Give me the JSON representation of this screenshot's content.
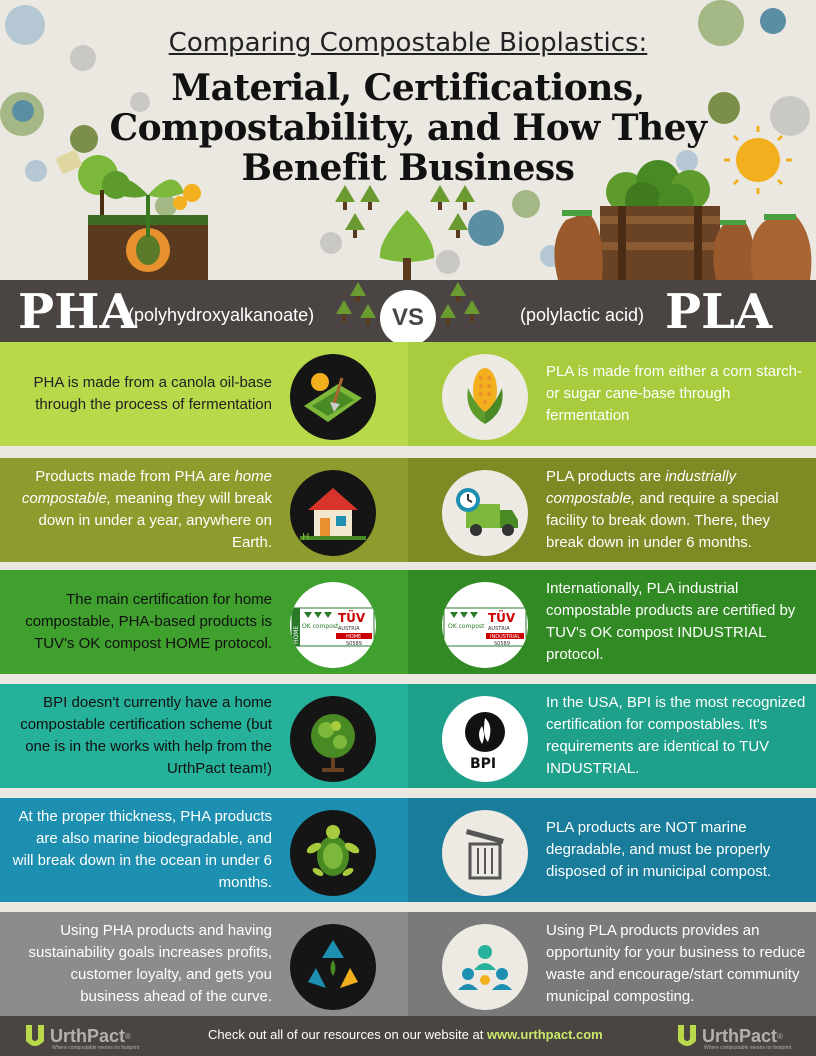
{
  "header": {
    "subtitle": "Comparing Compostable Bioplastics:",
    "title_lines": [
      "Material, Certifications,",
      "Compostability, and How They",
      "Benefit Business"
    ]
  },
  "vs_bar": {
    "left_abbr": "PHA",
    "left_full": "(polyhydroxyalkanoate)",
    "vs_label": "VS",
    "right_full": "(polylactic acid)",
    "right_abbr": "PLA"
  },
  "colors": {
    "row1_left": "#b8d94a",
    "row1_right": "#a8cc3e",
    "row2_left": "#8f9b2d",
    "row2_right": "#7f8a24",
    "row3_left": "#3fa02e",
    "row3_right": "#328a24",
    "row4_left": "#26b29a",
    "row4_right": "#1ea08a",
    "row5_left": "#1d8fb0",
    "row5_right": "#187c9a",
    "row6_left": "#8c8c8c",
    "row6_right": "#7a7a7a",
    "bar": "#4a4542",
    "footer_link": "#c9e86a"
  },
  "rows": [
    {
      "left": {
        "text": "PHA is made from a canola oil-base through the process of fermentation",
        "icon": "farm-field-icon"
      },
      "right": {
        "text": "PLA is made from either a corn starch- or sugar cane-base through fermentation",
        "icon": "corn-icon"
      }
    },
    {
      "left": {
        "text_before": "Products made from PHA are ",
        "text_em": "home compostable,",
        "text_after": " meaning they will break down in under a year, anywhere on Earth.",
        "icon": "house-icon"
      },
      "right": {
        "text_before": "PLA products are ",
        "text_em": "industrially compostable,",
        "text_after": " and require a special facility to break down. There, they break down in under 6 months.",
        "icon": "delivery-truck-icon"
      }
    },
    {
      "left": {
        "text": "The main certification for home compostable, PHA-based products is TUV's OK compost HOME protocol.",
        "icon": "tuv-home-cert-icon",
        "cert": {
          "side": "HOME",
          "ok": "OK compost",
          "tuv": "TÜV",
          "austria": "AUSTRIA",
          "type": "HOME",
          "code": "S0589"
        }
      },
      "right": {
        "text": "Internationally, PLA industrial compostable products are certified by TUV's OK compost INDUSTRIAL protocol.",
        "icon": "tuv-industrial-cert-icon",
        "cert": {
          "ok": "OK compost",
          "tuv": "TÜV",
          "austria": "AUSTRIA",
          "type": "INDUSTRIAL",
          "code": "S0589"
        }
      }
    },
    {
      "left": {
        "text": "BPI doesn't currently have a home compostable certification scheme (but one is in the works with help from the UrthPact team!)",
        "icon": "leafy-globe-icon"
      },
      "right": {
        "text": "In the USA, BPI is the most recognized certification for compostables. It's requirements are identical to TUV INDUSTRIAL.",
        "icon": "bpi-logo-icon",
        "logo_text": "BPI"
      }
    },
    {
      "left": {
        "text": "At the proper thickness, PHA products are also marine biodegradable, and will break down in the ocean in under 6 months.",
        "icon": "sea-turtle-icon"
      },
      "right": {
        "text": "PLA products are NOT marine degradable, and must be properly disposed of in municipal compost.",
        "icon": "trash-can-icon"
      }
    },
    {
      "left": {
        "text": "Using PHA products and having sustainability goals increases profits, customer loyalty, and gets you business ahead of the curve.",
        "icon": "recycle-icon"
      },
      "right": {
        "text": "Using PLA products provides an opportunity for your business to reduce waste and encourage/start community municipal composting.",
        "icon": "community-icon"
      }
    }
  ],
  "footer": {
    "brand": "UrthPact",
    "brand_mark": "®",
    "tagline": "Where compostable means no footprint",
    "text_before": "Check out all of our resources on our website at ",
    "link": "www.urthpact.com"
  }
}
